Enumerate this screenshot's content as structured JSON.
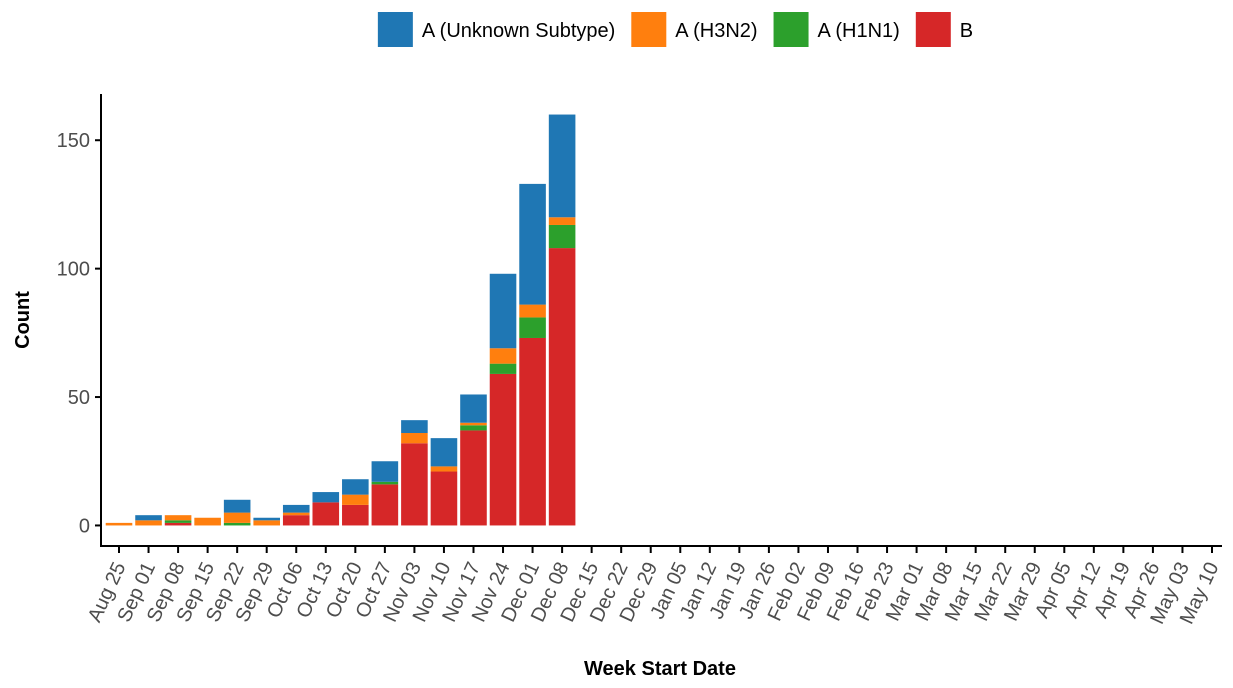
{
  "chart_data": {
    "type": "stacked-bar",
    "x_label": "Week Start Date",
    "y_label": "Count",
    "categories": [
      "Aug 25",
      "Sep 01",
      "Sep 08",
      "Sep 15",
      "Sep 22",
      "Sep 29",
      "Oct 06",
      "Oct 13",
      "Oct 20",
      "Oct 27",
      "Nov 03",
      "Nov 10",
      "Nov 17",
      "Nov 24",
      "Dec 01",
      "Dec 08",
      "Dec 15",
      "Dec 22",
      "Dec 29",
      "Jan 05",
      "Jan 12",
      "Jan 19",
      "Jan 26",
      "Feb 02",
      "Feb 09",
      "Feb 16",
      "Feb 23",
      "Mar 01",
      "Mar 08",
      "Mar 15",
      "Mar 22",
      "Mar 29",
      "Apr 05",
      "Apr 12",
      "Apr 19",
      "Apr 26",
      "May 03",
      "May 10"
    ],
    "series": [
      {
        "name": "A (Unknown Subtype)",
        "color": "#1f77b4",
        "values": [
          0,
          2,
          0,
          0,
          5,
          1,
          3,
          4,
          6,
          8,
          5,
          11,
          11,
          29,
          47,
          40,
          null,
          null,
          null,
          null,
          null,
          null,
          null,
          null,
          null,
          null,
          null,
          null,
          null,
          null,
          null,
          null,
          null,
          null,
          null,
          null,
          null,
          null
        ]
      },
      {
        "name": "A (H3N2)",
        "color": "#ff7f0e",
        "values": [
          1,
          2,
          2,
          3,
          4,
          2,
          1,
          0,
          4,
          0,
          4,
          2,
          1,
          6,
          5,
          3,
          null,
          null,
          null,
          null,
          null,
          null,
          null,
          null,
          null,
          null,
          null,
          null,
          null,
          null,
          null,
          null,
          null,
          null,
          null,
          null,
          null,
          null
        ]
      },
      {
        "name": "A (H1N1)",
        "color": "#2ca02c",
        "values": [
          0,
          0,
          1,
          0,
          1,
          0,
          0,
          0,
          0,
          1,
          0,
          0,
          2,
          4,
          8,
          9,
          null,
          null,
          null,
          null,
          null,
          null,
          null,
          null,
          null,
          null,
          null,
          null,
          null,
          null,
          null,
          null,
          null,
          null,
          null,
          null,
          null,
          null
        ]
      },
      {
        "name": "B",
        "color": "#d62728",
        "values": [
          0,
          0,
          1,
          0,
          0,
          0,
          4,
          9,
          8,
          16,
          32,
          21,
          37,
          59,
          73,
          108,
          null,
          null,
          null,
          null,
          null,
          null,
          null,
          null,
          null,
          null,
          null,
          null,
          null,
          null,
          null,
          null,
          null,
          null,
          null,
          null,
          null,
          null
        ]
      }
    ],
    "ylim": [
      -8,
      168
    ],
    "yticks": [
      0,
      50,
      100,
      150
    ],
    "legend": "top",
    "grid": false
  }
}
